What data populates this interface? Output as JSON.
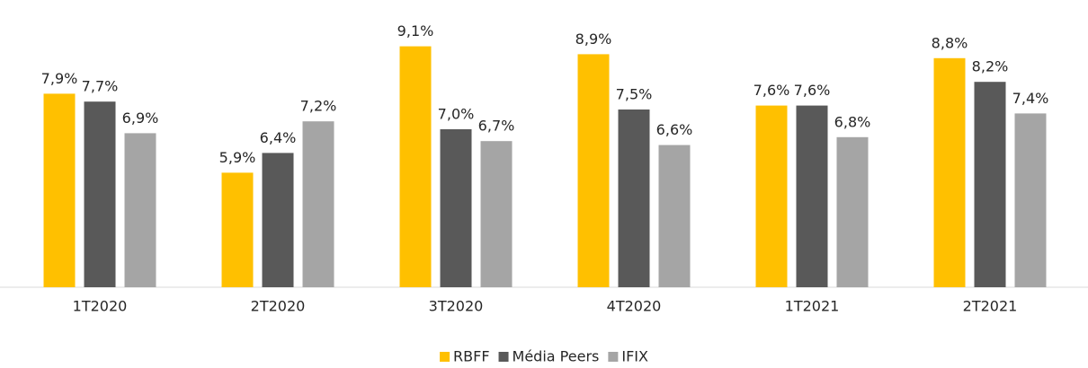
{
  "chart_data": {
    "type": "bar",
    "categories": [
      "1T2020",
      "2T2020",
      "3T2020",
      "4T2020",
      "1T2021",
      "2T2021"
    ],
    "series": [
      {
        "name": "RBFF",
        "color": "#ffc000",
        "values": [
          7.9,
          5.9,
          9.1,
          8.9,
          7.6,
          8.8
        ],
        "value_labels": [
          "7,9%",
          "5,9%",
          "9,1%",
          "8,9%",
          "7,6%",
          "8,8%"
        ]
      },
      {
        "name": "Média Peers",
        "color": "#595959",
        "values": [
          7.7,
          6.4,
          7.0,
          7.5,
          7.6,
          8.2
        ],
        "value_labels": [
          "7,7%",
          "6,4%",
          "7,0%",
          "7,5%",
          "7,6%",
          "8,2%"
        ]
      },
      {
        "name": "IFIX",
        "color": "#a5a5a5",
        "values": [
          6.9,
          7.2,
          6.7,
          6.6,
          6.8,
          7.4
        ],
        "value_labels": [
          "6,9%",
          "7,2%",
          "6,7%",
          "6,6%",
          "6,8%",
          "7,4%"
        ]
      }
    ],
    "ylim": [
      3,
      10
    ],
    "legend": "bottom"
  }
}
